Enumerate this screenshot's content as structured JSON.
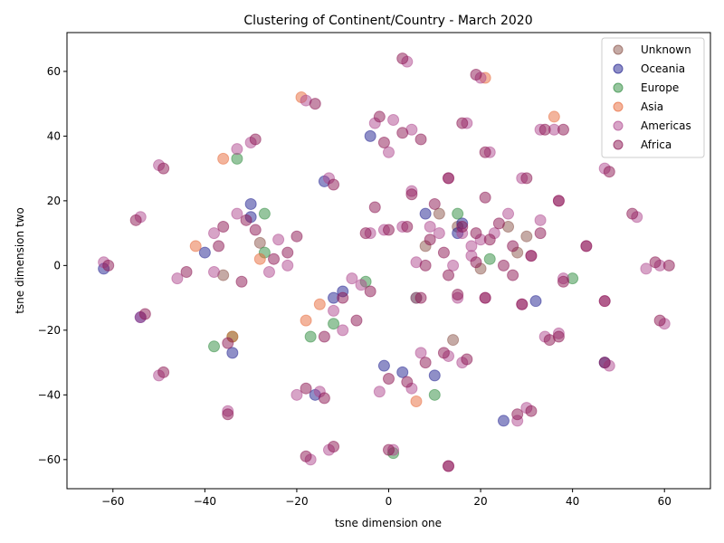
{
  "chart_data": {
    "type": "scatter",
    "title": "Clustering of Continent/Country - March 2020",
    "xlabel": "tsne dimension one",
    "ylabel": "tsne dimension two",
    "xlim": [
      -70,
      70
    ],
    "ylim": [
      -69,
      72
    ],
    "xticks": [
      -60,
      -40,
      -20,
      0,
      20,
      40,
      60
    ],
    "yticks": [
      -60,
      -40,
      -20,
      0,
      20,
      40,
      60
    ],
    "grid": false,
    "legend_position": "top-right",
    "marker_opacity": 0.5,
    "series": [
      {
        "name": "Unknown",
        "color": "#8c564b",
        "points": [
          [
            11,
            16
          ],
          [
            15,
            12
          ],
          [
            28,
            4
          ],
          [
            -28,
            7
          ],
          [
            8,
            6
          ],
          [
            -36,
            -3
          ],
          [
            14,
            -23
          ],
          [
            30,
            9
          ],
          [
            26,
            12
          ],
          [
            20,
            -1
          ]
        ]
      },
      {
        "name": "Oceania",
        "color": "#1f1f8f",
        "points": [
          [
            -30,
            19
          ],
          [
            8,
            16
          ],
          [
            32,
            -11
          ],
          [
            25,
            -48
          ],
          [
            -12,
            -10
          ],
          [
            3,
            -33
          ],
          [
            -16,
            -40
          ],
          [
            -34,
            -27
          ],
          [
            -30,
            15
          ],
          [
            15,
            10
          ],
          [
            -1,
            -31
          ],
          [
            47,
            -30
          ],
          [
            -4,
            40
          ],
          [
            -40,
            4
          ],
          [
            -62,
            -1
          ],
          [
            -54,
            -16
          ],
          [
            10,
            -34
          ],
          [
            -10,
            -8
          ],
          [
            16,
            13
          ],
          [
            -14,
            26
          ]
        ]
      },
      {
        "name": "Europe",
        "color": "#2e8b3e",
        "points": [
          [
            -27,
            16
          ],
          [
            -38,
            -25
          ],
          [
            -27,
            4
          ],
          [
            -17,
            -22
          ],
          [
            -33,
            33
          ],
          [
            10,
            -40
          ],
          [
            -5,
            -5
          ],
          [
            22,
            2
          ],
          [
            6,
            -10
          ],
          [
            -12,
            -18
          ],
          [
            1,
            -58
          ],
          [
            15,
            16
          ],
          [
            -34,
            -22
          ],
          [
            40,
            -4
          ]
        ]
      },
      {
        "name": "Asia",
        "color": "#e86a3a",
        "points": [
          [
            -36,
            33
          ],
          [
            -42,
            6
          ],
          [
            -18,
            -17
          ],
          [
            6,
            -42
          ],
          [
            -28,
            2
          ],
          [
            36,
            46
          ],
          [
            -34,
            -22
          ],
          [
            -19,
            52
          ],
          [
            -15,
            -12
          ],
          [
            21,
            58
          ]
        ]
      },
      {
        "name": "Americas",
        "color": "#b04a90",
        "points": [
          [
            -62,
            1
          ],
          [
            -54,
            15
          ],
          [
            -50,
            31
          ],
          [
            -54,
            -16
          ],
          [
            -50,
            -34
          ],
          [
            -35,
            -45
          ],
          [
            -17,
            -60
          ],
          [
            -13,
            -57
          ],
          [
            -18,
            51
          ],
          [
            -13,
            27
          ],
          [
            -30,
            38
          ],
          [
            -33,
            36
          ],
          [
            -38,
            -2
          ],
          [
            -26,
            -2
          ],
          [
            -20,
            -40
          ],
          [
            -15,
            -39
          ],
          [
            -12,
            -14
          ],
          [
            -6,
            -6
          ],
          [
            1,
            45
          ],
          [
            4,
            63
          ],
          [
            -3,
            44
          ],
          [
            5,
            42
          ],
          [
            0,
            35
          ],
          [
            20,
            58
          ],
          [
            17,
            44
          ],
          [
            36,
            42
          ],
          [
            33,
            42
          ],
          [
            47,
            30
          ],
          [
            22,
            35
          ],
          [
            29,
            27
          ],
          [
            13,
            27
          ],
          [
            37,
            20
          ],
          [
            54,
            15
          ],
          [
            59,
            0
          ],
          [
            56,
            -1
          ],
          [
            60,
            -18
          ],
          [
            47,
            -11
          ],
          [
            43,
            6
          ],
          [
            38,
            -4
          ],
          [
            34,
            -22
          ],
          [
            37,
            -21
          ],
          [
            30,
            -44
          ],
          [
            28,
            -48
          ],
          [
            48,
            -31
          ],
          [
            13,
            -28
          ],
          [
            16,
            -30
          ],
          [
            7,
            -27
          ],
          [
            5,
            -38
          ],
          [
            -2,
            -39
          ],
          [
            13,
            -62
          ],
          [
            1,
            -57
          ],
          [
            -4,
            10
          ],
          [
            5,
            23
          ],
          [
            16,
            10
          ],
          [
            20,
            8
          ],
          [
            18,
            6
          ],
          [
            23,
            10
          ],
          [
            26,
            16
          ],
          [
            11,
            10
          ],
          [
            3,
            12
          ],
          [
            9,
            12
          ],
          [
            6,
            1
          ],
          [
            14,
            0
          ],
          [
            18,
            3
          ],
          [
            -22,
            0
          ],
          [
            -24,
            8
          ],
          [
            -38,
            10
          ],
          [
            -33,
            16
          ],
          [
            -10,
            -20
          ],
          [
            -8,
            -4
          ],
          [
            29,
            -12
          ],
          [
            31,
            3
          ],
          [
            33,
            14
          ],
          [
            21,
            -10
          ],
          [
            -1,
            11
          ],
          [
            6,
            -10
          ],
          [
            15,
            -10
          ],
          [
            -46,
            -4
          ]
        ]
      },
      {
        "name": "Africa",
        "color": "#8b1652",
        "points": [
          [
            -61,
            0
          ],
          [
            -55,
            14
          ],
          [
            -49,
            30
          ],
          [
            -53,
            -15
          ],
          [
            -49,
            -33
          ],
          [
            -35,
            -46
          ],
          [
            -18,
            -59
          ],
          [
            -12,
            -56
          ],
          [
            -16,
            50
          ],
          [
            -12,
            25
          ],
          [
            -29,
            39
          ],
          [
            -35,
            -24
          ],
          [
            -37,
            6
          ],
          [
            -32,
            -5
          ],
          [
            -25,
            2
          ],
          [
            -29,
            11
          ],
          [
            -18,
            -38
          ],
          [
            -14,
            -41
          ],
          [
            -10,
            -10
          ],
          [
            -7,
            -17
          ],
          [
            -2,
            46
          ],
          [
            3,
            41
          ],
          [
            -1,
            38
          ],
          [
            7,
            39
          ],
          [
            3,
            64
          ],
          [
            19,
            59
          ],
          [
            16,
            44
          ],
          [
            34,
            42
          ],
          [
            38,
            42
          ],
          [
            48,
            29
          ],
          [
            21,
            35
          ],
          [
            30,
            27
          ],
          [
            13,
            27
          ],
          [
            37,
            20
          ],
          [
            53,
            16
          ],
          [
            58,
            1
          ],
          [
            61,
            0
          ],
          [
            59,
            -17
          ],
          [
            47,
            -11
          ],
          [
            43,
            6
          ],
          [
            38,
            -5
          ],
          [
            35,
            -23
          ],
          [
            37,
            -22
          ],
          [
            31,
            -45
          ],
          [
            28,
            -46
          ],
          [
            47,
            -30
          ],
          [
            12,
            -27
          ],
          [
            17,
            -29
          ],
          [
            8,
            -30
          ],
          [
            4,
            -36
          ],
          [
            0,
            -35
          ],
          [
            13,
            -62
          ],
          [
            0,
            -57
          ],
          [
            -5,
            10
          ],
          [
            5,
            22
          ],
          [
            16,
            12
          ],
          [
            19,
            10
          ],
          [
            22,
            8
          ],
          [
            24,
            13
          ],
          [
            27,
            6
          ],
          [
            12,
            4
          ],
          [
            4,
            12
          ],
          [
            9,
            8
          ],
          [
            8,
            0
          ],
          [
            13,
            -3
          ],
          [
            19,
            1
          ],
          [
            -20,
            9
          ],
          [
            -22,
            4
          ],
          [
            -36,
            12
          ],
          [
            -31,
            14
          ],
          [
            -14,
            -22
          ],
          [
            -4,
            -8
          ],
          [
            29,
            -12
          ],
          [
            31,
            3
          ],
          [
            33,
            10
          ],
          [
            21,
            -10
          ],
          [
            0,
            11
          ],
          [
            7,
            -10
          ],
          [
            15,
            -9
          ],
          [
            -44,
            -2
          ],
          [
            25,
            0
          ],
          [
            10,
            19
          ],
          [
            21,
            21
          ],
          [
            -3,
            18
          ],
          [
            27,
            -3
          ]
        ]
      }
    ]
  }
}
